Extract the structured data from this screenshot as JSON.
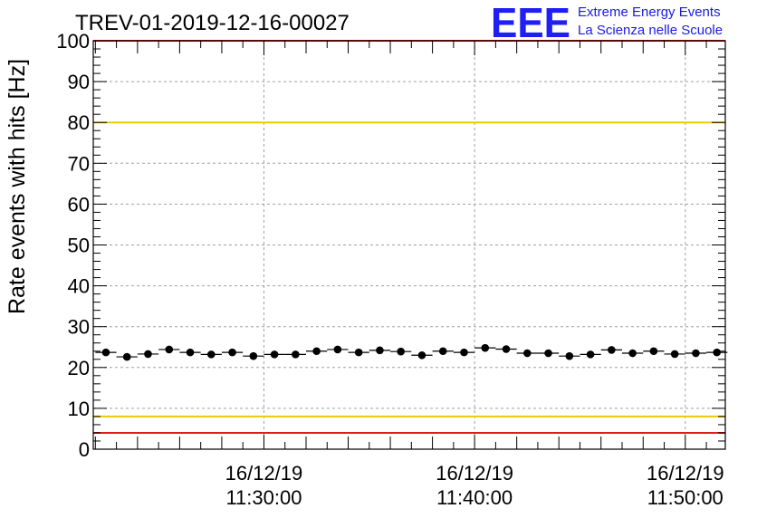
{
  "chart_data": {
    "type": "scatter",
    "title": "TREV-01-2019-12-16-00027",
    "xlabel": "",
    "ylabel": "Rate events with hits [Hz]",
    "ylim": [
      0,
      100
    ],
    "xlim_minutes": [
      11.9,
      41.9
    ],
    "y_ticks": [
      "0",
      "10",
      "20",
      "30",
      "40",
      "50",
      "60",
      "70",
      "80",
      "90",
      "100"
    ],
    "x_ticks": [
      {
        "minute": 20,
        "date": "16/12/19",
        "time": "11:30:00"
      },
      {
        "minute": 30,
        "date": "16/12/19",
        "time": "11:40:00"
      },
      {
        "minute": 40,
        "date": "16/12/19",
        "time": "11:50:00"
      }
    ],
    "grid": true,
    "reference_lines": [
      {
        "value": 100,
        "color": "#e31a1a"
      },
      {
        "value": 80,
        "color": "#f0c800"
      },
      {
        "value": 8,
        "color": "#f0c800"
      },
      {
        "value": 4,
        "color": "#e31a1a"
      }
    ],
    "series": [
      {
        "name": "rate",
        "color": "#000000",
        "x_minutes": [
          12.5,
          13.5,
          14.5,
          15.5,
          16.5,
          17.5,
          18.5,
          19.5,
          20.5,
          21.5,
          22.5,
          23.5,
          24.5,
          25.5,
          26.5,
          27.5,
          28.5,
          29.5,
          30.5,
          31.5,
          32.5,
          33.5,
          34.5,
          35.5,
          36.5,
          37.5,
          38.5,
          39.5,
          40.5,
          41.5
        ],
        "values": [
          23.7,
          22.6,
          23.3,
          24.4,
          23.7,
          23.2,
          23.7,
          22.8,
          23.2,
          23.2,
          24.0,
          24.4,
          23.7,
          24.2,
          23.9,
          23.0,
          24.0,
          23.7,
          24.8,
          24.5,
          23.5,
          23.5,
          22.8,
          23.2,
          24.3,
          23.5,
          24.0,
          23.3,
          23.5,
          23.7
        ]
      }
    ]
  },
  "logo": {
    "letters": "EEE",
    "line1": "Extreme Energy Events",
    "line2": "La Scienza nelle Scuole"
  }
}
